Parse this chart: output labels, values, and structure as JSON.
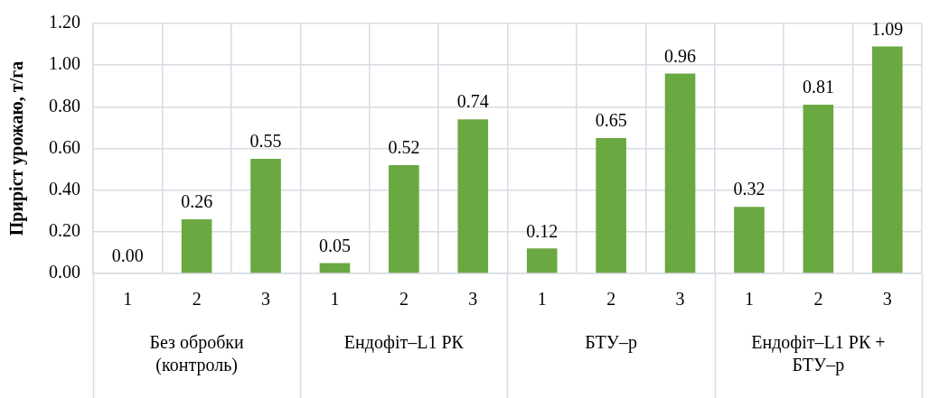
{
  "chart_data": {
    "type": "bar",
    "ylabel": "Приріст урожаю, т/га",
    "categories": [
      "1",
      "2",
      "3",
      "1",
      "2",
      "3",
      "1",
      "2",
      "3",
      "1",
      "2",
      "3"
    ],
    "values": [
      0,
      0.26,
      0.55,
      0.05,
      0.52,
      0.74,
      0.12,
      0.65,
      0.96,
      0.32,
      0.81,
      1.09
    ],
    "value_labels": [
      "0.00",
      "0.26",
      "0.55",
      "0.05",
      "0.52",
      "0.74",
      "0.12",
      "0.65",
      "0.96",
      "0.32",
      "0.81",
      "1.09"
    ],
    "color": "#6aa842",
    "ylim": [
      0,
      1.2
    ],
    "yticks": [
      {
        "value": 0,
        "label": "0.00"
      },
      {
        "value": 0.2,
        "label": "0.20"
      },
      {
        "value": 0.4,
        "label": "0.40"
      },
      {
        "value": 0.6,
        "label": "0.60"
      },
      {
        "value": 0.8,
        "label": "0.80"
      },
      {
        "value": 1.0,
        "label": "1.00"
      },
      {
        "value": 1.2,
        "label": "1.20"
      }
    ],
    "grid": true,
    "annotations": [
      "Без обробки (контроль)",
      "Ендофіт–L1 РК",
      "БТУ–р",
      "Ендофіт–L1 РК + БТУ–р"
    ]
  }
}
